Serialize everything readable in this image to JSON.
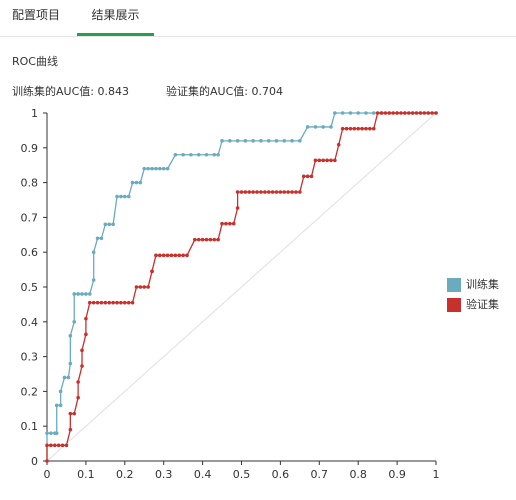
{
  "tabs": [
    {
      "label": "配置项目"
    },
    {
      "label": "结果展示",
      "active": true
    }
  ],
  "section_title": "ROC曲线",
  "auc": {
    "train_label": "训练集的AUC值: 0.843",
    "val_label": "验证集的AUC值: 0.704"
  },
  "colors": {
    "train": "#6aabc0",
    "val": "#c8302c",
    "diag": "#e0e0e0",
    "axis": "#333333",
    "tab_active": "#25a04a"
  },
  "chart_data": {
    "type": "line",
    "title": "",
    "xlabel": "",
    "ylabel": "",
    "xlim": [
      0,
      1
    ],
    "ylim": [
      0,
      1
    ],
    "x_ticks": [
      "0",
      "0.1",
      "0.2",
      "0.3",
      "0.4",
      "0.5",
      "0.6",
      "0.7",
      "0.8",
      "0.9",
      "1"
    ],
    "y_ticks": [
      "0",
      "0.1",
      "0.2",
      "0.3",
      "0.4",
      "0.5",
      "0.6",
      "0.7",
      "0.8",
      "0.9",
      "1"
    ],
    "legend_position": "right",
    "series": [
      {
        "name": "训练集",
        "color": "#6aabc0",
        "points": [
          [
            0,
            0
          ],
          [
            0,
            0.08
          ],
          [
            0.01,
            0.08
          ],
          [
            0.02,
            0.08
          ],
          [
            0.025,
            0.08
          ],
          [
            0.025,
            0.16
          ],
          [
            0.035,
            0.16
          ],
          [
            0.035,
            0.2
          ],
          [
            0.045,
            0.24
          ],
          [
            0.055,
            0.24
          ],
          [
            0.06,
            0.28
          ],
          [
            0.06,
            0.36
          ],
          [
            0.07,
            0.4
          ],
          [
            0.07,
            0.48
          ],
          [
            0.08,
            0.48
          ],
          [
            0.09,
            0.48
          ],
          [
            0.1,
            0.48
          ],
          [
            0.11,
            0.48
          ],
          [
            0.12,
            0.52
          ],
          [
            0.12,
            0.6
          ],
          [
            0.13,
            0.64
          ],
          [
            0.14,
            0.64
          ],
          [
            0.15,
            0.68
          ],
          [
            0.16,
            0.68
          ],
          [
            0.17,
            0.68
          ],
          [
            0.18,
            0.76
          ],
          [
            0.19,
            0.76
          ],
          [
            0.2,
            0.76
          ],
          [
            0.21,
            0.76
          ],
          [
            0.22,
            0.8
          ],
          [
            0.23,
            0.8
          ],
          [
            0.24,
            0.8
          ],
          [
            0.25,
            0.84
          ],
          [
            0.26,
            0.84
          ],
          [
            0.27,
            0.84
          ],
          [
            0.28,
            0.84
          ],
          [
            0.29,
            0.84
          ],
          [
            0.3,
            0.84
          ],
          [
            0.31,
            0.84
          ],
          [
            0.33,
            0.88
          ],
          [
            0.35,
            0.88
          ],
          [
            0.37,
            0.88
          ],
          [
            0.39,
            0.88
          ],
          [
            0.41,
            0.88
          ],
          [
            0.43,
            0.88
          ],
          [
            0.44,
            0.88
          ],
          [
            0.45,
            0.92
          ],
          [
            0.47,
            0.92
          ],
          [
            0.49,
            0.92
          ],
          [
            0.51,
            0.92
          ],
          [
            0.53,
            0.92
          ],
          [
            0.55,
            0.92
          ],
          [
            0.57,
            0.92
          ],
          [
            0.59,
            0.92
          ],
          [
            0.61,
            0.92
          ],
          [
            0.63,
            0.92
          ],
          [
            0.65,
            0.92
          ],
          [
            0.67,
            0.96
          ],
          [
            0.69,
            0.96
          ],
          [
            0.71,
            0.96
          ],
          [
            0.73,
            0.96
          ],
          [
            0.74,
            1
          ],
          [
            0.76,
            1
          ],
          [
            0.78,
            1
          ],
          [
            0.8,
            1
          ],
          [
            0.82,
            1
          ],
          [
            0.84,
            1
          ],
          [
            0.86,
            1
          ],
          [
            0.88,
            1
          ],
          [
            0.9,
            1
          ],
          [
            0.92,
            1
          ],
          [
            0.94,
            1
          ],
          [
            0.96,
            1
          ],
          [
            0.98,
            1
          ],
          [
            1,
            1
          ]
        ]
      },
      {
        "name": "验证集",
        "color": "#c8302c",
        "points": [
          [
            0,
            0
          ],
          [
            0,
            0.045
          ],
          [
            0.01,
            0.045
          ],
          [
            0.02,
            0.045
          ],
          [
            0.03,
            0.045
          ],
          [
            0.04,
            0.045
          ],
          [
            0.05,
            0.045
          ],
          [
            0.06,
            0.09
          ],
          [
            0.06,
            0.136
          ],
          [
            0.07,
            0.136
          ],
          [
            0.08,
            0.182
          ],
          [
            0.08,
            0.227
          ],
          [
            0.09,
            0.273
          ],
          [
            0.09,
            0.318
          ],
          [
            0.1,
            0.364
          ],
          [
            0.1,
            0.409
          ],
          [
            0.11,
            0.455
          ],
          [
            0.12,
            0.455
          ],
          [
            0.13,
            0.455
          ],
          [
            0.14,
            0.455
          ],
          [
            0.15,
            0.455
          ],
          [
            0.16,
            0.455
          ],
          [
            0.17,
            0.455
          ],
          [
            0.18,
            0.455
          ],
          [
            0.19,
            0.455
          ],
          [
            0.2,
            0.455
          ],
          [
            0.21,
            0.455
          ],
          [
            0.22,
            0.455
          ],
          [
            0.23,
            0.5
          ],
          [
            0.24,
            0.5
          ],
          [
            0.25,
            0.5
          ],
          [
            0.26,
            0.5
          ],
          [
            0.27,
            0.545
          ],
          [
            0.27,
            0.545
          ],
          [
            0.28,
            0.591
          ],
          [
            0.29,
            0.591
          ],
          [
            0.3,
            0.591
          ],
          [
            0.31,
            0.591
          ],
          [
            0.32,
            0.591
          ],
          [
            0.33,
            0.591
          ],
          [
            0.34,
            0.591
          ],
          [
            0.35,
            0.591
          ],
          [
            0.36,
            0.591
          ],
          [
            0.38,
            0.636
          ],
          [
            0.39,
            0.636
          ],
          [
            0.4,
            0.636
          ],
          [
            0.41,
            0.636
          ],
          [
            0.42,
            0.636
          ],
          [
            0.43,
            0.636
          ],
          [
            0.44,
            0.636
          ],
          [
            0.45,
            0.682
          ],
          [
            0.46,
            0.682
          ],
          [
            0.47,
            0.682
          ],
          [
            0.48,
            0.682
          ],
          [
            0.49,
            0.727
          ],
          [
            0.49,
            0.773
          ],
          [
            0.5,
            0.773
          ],
          [
            0.51,
            0.773
          ],
          [
            0.52,
            0.773
          ],
          [
            0.53,
            0.773
          ],
          [
            0.54,
            0.773
          ],
          [
            0.55,
            0.773
          ],
          [
            0.56,
            0.773
          ],
          [
            0.57,
            0.773
          ],
          [
            0.58,
            0.773
          ],
          [
            0.59,
            0.773
          ],
          [
            0.6,
            0.773
          ],
          [
            0.61,
            0.773
          ],
          [
            0.62,
            0.773
          ],
          [
            0.63,
            0.773
          ],
          [
            0.64,
            0.773
          ],
          [
            0.65,
            0.773
          ],
          [
            0.66,
            0.818
          ],
          [
            0.67,
            0.818
          ],
          [
            0.68,
            0.818
          ],
          [
            0.69,
            0.864
          ],
          [
            0.7,
            0.864
          ],
          [
            0.71,
            0.864
          ],
          [
            0.72,
            0.864
          ],
          [
            0.73,
            0.864
          ],
          [
            0.74,
            0.864
          ],
          [
            0.75,
            0.909
          ],
          [
            0.76,
            0.955
          ],
          [
            0.77,
            0.955
          ],
          [
            0.78,
            0.955
          ],
          [
            0.79,
            0.955
          ],
          [
            0.8,
            0.955
          ],
          [
            0.81,
            0.955
          ],
          [
            0.82,
            0.955
          ],
          [
            0.83,
            0.955
          ],
          [
            0.84,
            0.955
          ],
          [
            0.85,
            1
          ],
          [
            0.86,
            1
          ],
          [
            0.87,
            1
          ],
          [
            0.88,
            1
          ],
          [
            0.89,
            1
          ],
          [
            0.9,
            1
          ],
          [
            0.91,
            1
          ],
          [
            0.92,
            1
          ],
          [
            0.93,
            1
          ],
          [
            0.94,
            1
          ],
          [
            0.95,
            1
          ],
          [
            0.96,
            1
          ],
          [
            0.97,
            1
          ],
          [
            0.98,
            1
          ],
          [
            0.99,
            1
          ],
          [
            1,
            1
          ]
        ]
      }
    ]
  }
}
